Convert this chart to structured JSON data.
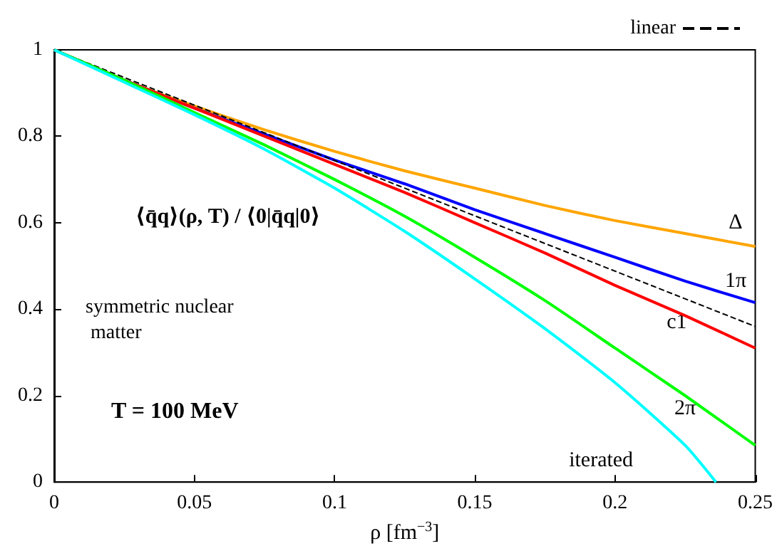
{
  "chart_data": {
    "type": "line",
    "xlabel": "ρ [fm$^{−3}$]",
    "ylabel": "⟨q̄q⟩(ρ, T) / ⟨0|q̄q|0⟩",
    "annotations": [
      "symmetric nuclear matter",
      "T = 100 MeV"
    ],
    "xlim": [
      0,
      0.25
    ],
    "xticks": [
      0,
      0.05,
      0.1,
      0.15,
      0.2,
      0.25
    ],
    "ylim": [
      0,
      1
    ],
    "yticks": [
      0,
      0.2,
      0.4,
      0.6,
      0.8,
      1
    ],
    "grid": false,
    "legend": "top right",
    "marker": "none",
    "series": [
      {
        "name": "Δ",
        "color": "#ffa500",
        "x": [
          0,
          0.025,
          0.05,
          0.075,
          0.1,
          0.125,
          0.15,
          0.175,
          0.2,
          0.225,
          0.25
        ],
        "values": [
          1,
          0.93,
          0.87,
          0.815,
          0.765,
          0.72,
          0.68,
          0.64,
          0.605,
          0.575,
          0.545
        ]
      },
      {
        "name": "1π",
        "color": "#0000ff",
        "x": [
          0,
          0.025,
          0.05,
          0.075,
          0.1,
          0.125,
          0.15,
          0.175,
          0.2,
          0.225,
          0.25
        ],
        "values": [
          1,
          0.93,
          0.865,
          0.805,
          0.745,
          0.69,
          0.63,
          0.575,
          0.52,
          0.465,
          0.415
        ]
      },
      {
        "name": "linear",
        "color": "#000000",
        "line_style": "dashed",
        "x": [
          0,
          0.25
        ],
        "values": [
          1,
          0.36
        ]
      },
      {
        "name": "c1",
        "color": "#ff0000",
        "x": [
          0,
          0.025,
          0.05,
          0.075,
          0.1,
          0.125,
          0.15,
          0.175,
          0.2,
          0.225,
          0.25
        ],
        "values": [
          1,
          0.93,
          0.865,
          0.8,
          0.735,
          0.67,
          0.6,
          0.53,
          0.455,
          0.385,
          0.31
        ]
      },
      {
        "name": "2π",
        "color": "#00ff00",
        "x": [
          0,
          0.025,
          0.05,
          0.075,
          0.1,
          0.125,
          0.15,
          0.175,
          0.2,
          0.225,
          0.25
        ],
        "values": [
          1,
          0.93,
          0.855,
          0.78,
          0.7,
          0.615,
          0.52,
          0.42,
          0.31,
          0.2,
          0.085
        ]
      },
      {
        "name": "iterated",
        "color": "#00ffff",
        "x": [
          0,
          0.025,
          0.05,
          0.075,
          0.1,
          0.125,
          0.15,
          0.175,
          0.2,
          0.225,
          0.236
        ],
        "values": [
          1,
          0.925,
          0.85,
          0.77,
          0.68,
          0.58,
          0.47,
          0.355,
          0.23,
          0.085,
          0
        ]
      }
    ]
  }
}
